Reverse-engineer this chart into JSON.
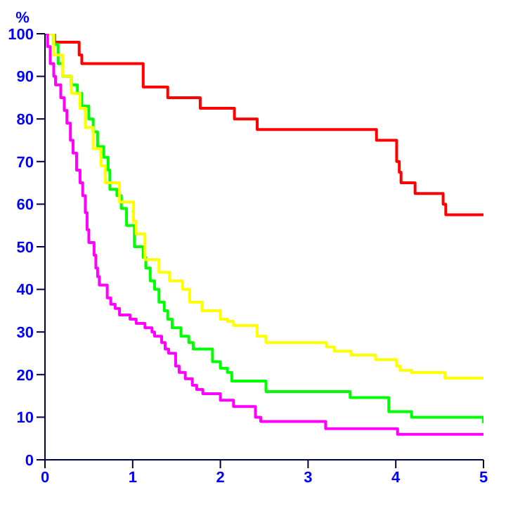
{
  "chart_data": {
    "type": "step",
    "ylabel": "%",
    "xlim": [
      0,
      5
    ],
    "xticks": [
      0,
      1,
      2,
      3,
      4,
      5
    ],
    "ylim": [
      0,
      100
    ],
    "yticks": [
      0,
      10,
      20,
      30,
      40,
      50,
      60,
      70,
      80,
      90,
      100
    ],
    "marker": "none",
    "line_style": "solid",
    "series": [
      {
        "color": "#ff0000",
        "x": [
          0,
          0.11,
          0.39,
          0.42,
          1.12,
          1.4,
          1.77,
          2.16,
          2.42,
          3.78,
          4.01,
          4.04,
          4.06,
          4.22,
          4.54,
          4.57,
          5
        ],
        "values": [
          100,
          98,
          95,
          93,
          87.5,
          85,
          82.5,
          80,
          77.5,
          75,
          70,
          67.5,
          65,
          62.5,
          60,
          57.5,
          57.5
        ]
      },
      {
        "color": "#00ff00",
        "x": [
          0,
          0.1,
          0.15,
          0.2,
          0.3,
          0.37,
          0.42,
          0.5,
          0.55,
          0.6,
          0.67,
          0.72,
          0.74,
          0.82,
          0.87,
          0.93,
          1.02,
          1.12,
          1.15,
          1.2,
          1.25,
          1.3,
          1.36,
          1.4,
          1.45,
          1.55,
          1.64,
          1.69,
          1.91,
          2.0,
          2.08,
          2.13,
          2.52,
          3.48,
          3.92,
          4.18,
          5
        ],
        "values": [
          100,
          97.5,
          93,
          90,
          88,
          86,
          83,
          80,
          77,
          73.5,
          71,
          68,
          63.5,
          62,
          59,
          55,
          50,
          47.5,
          45,
          42,
          40,
          37,
          35,
          33,
          31,
          29,
          27.5,
          26,
          23,
          21.5,
          20.5,
          18.5,
          16,
          14.6,
          11.3,
          10,
          8.6
        ]
      },
      {
        "color": "#ffff00",
        "x": [
          0,
          0.1,
          0.2,
          0.3,
          0.4,
          0.46,
          0.55,
          0.64,
          0.69,
          0.85,
          1.01,
          1.04,
          1.14,
          1.3,
          1.42,
          1.57,
          1.65,
          1.79,
          2.0,
          2.08,
          2.15,
          2.42,
          2.52,
          3.21,
          3.3,
          3.49,
          3.77,
          4.01,
          4.05,
          4.18,
          4.56,
          5
        ],
        "values": [
          100,
          95,
          90,
          86,
          82.5,
          78,
          73,
          69,
          65,
          60.5,
          56,
          53,
          47,
          44,
          42,
          40,
          37,
          35,
          33,
          32.5,
          31.5,
          29,
          27.5,
          26.5,
          25.5,
          24.6,
          23.5,
          22,
          21,
          20.5,
          19.2,
          19.2
        ]
      },
      {
        "color": "#ff00ff",
        "x": [
          0,
          0.03,
          0.06,
          0.1,
          0.12,
          0.18,
          0.22,
          0.25,
          0.29,
          0.32,
          0.36,
          0.4,
          0.43,
          0.46,
          0.48,
          0.5,
          0.56,
          0.58,
          0.6,
          0.62,
          0.71,
          0.75,
          0.8,
          0.85,
          0.97,
          1.04,
          1.14,
          1.22,
          1.25,
          1.33,
          1.37,
          1.41,
          1.49,
          1.53,
          1.6,
          1.68,
          1.73,
          1.8,
          2.0,
          2.15,
          2.4,
          2.46,
          3.2,
          4.02,
          5
        ],
        "values": [
          100,
          97,
          93,
          90,
          88,
          85,
          82,
          79,
          75,
          72,
          68,
          65,
          62,
          58,
          54,
          51,
          48,
          45,
          43,
          41,
          38,
          36.5,
          35.5,
          34,
          33,
          32,
          31,
          30,
          29,
          27.5,
          26,
          25,
          22,
          20.5,
          19,
          17.5,
          16.5,
          15.5,
          14,
          12.5,
          10,
          9,
          7.3,
          6,
          6
        ]
      }
    ]
  }
}
